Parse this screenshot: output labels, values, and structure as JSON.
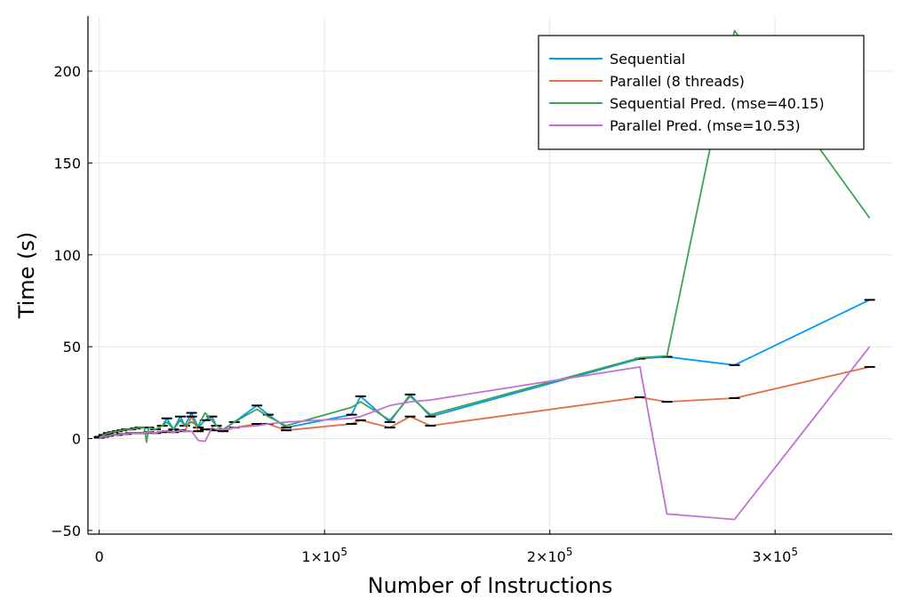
{
  "chart_data": {
    "type": "line",
    "xlabel": "Number of Instructions",
    "ylabel": "Time (s)",
    "xlim": [
      -5000,
      352000
    ],
    "ylim": [
      -52,
      230
    ],
    "x_ticks": [
      {
        "value": 0,
        "base": "0",
        "exp": ""
      },
      {
        "value": 100000,
        "base": "1×10",
        "exp": "5"
      },
      {
        "value": 200000,
        "base": "2×10",
        "exp": "5"
      },
      {
        "value": 300000,
        "base": "3×10",
        "exp": "5"
      }
    ],
    "y_ticks": [
      {
        "value": -50,
        "label": "−50"
      },
      {
        "value": 0,
        "label": "0"
      },
      {
        "value": 50,
        "label": "50"
      },
      {
        "value": 100,
        "label": "100"
      },
      {
        "value": 150,
        "label": "150"
      },
      {
        "value": 200,
        "label": "200"
      }
    ],
    "grid": true,
    "legend_position": "top-right",
    "series": [
      {
        "name": "Sequential",
        "color": "#009af9",
        "errorbars": true,
        "x": [
          0,
          2000,
          4000,
          6000,
          8000,
          10000,
          12000,
          14000,
          16000,
          18000,
          20000,
          22000,
          25000,
          28000,
          30000,
          33000,
          36000,
          38000,
          41000,
          44000,
          47000,
          50000,
          52000,
          55000,
          60000,
          70000,
          75000,
          83000,
          112000,
          116000,
          129000,
          138000,
          147000,
          240000,
          252000,
          282000,
          342000
        ],
        "y": [
          1,
          2,
          3,
          3.5,
          4,
          4.5,
          5,
          5,
          5.5,
          6,
          6,
          6,
          5,
          7,
          11,
          5,
          12,
          7,
          14,
          6,
          10,
          12,
          7,
          5,
          9,
          18,
          13,
          6,
          13,
          23,
          9,
          24,
          12,
          43.5,
          44.5,
          40,
          75.5
        ]
      },
      {
        "name": "Parallel (8 threads)",
        "color": "#e26f46",
        "errorbars": true,
        "x": [
          0,
          2000,
          4000,
          6000,
          8000,
          10000,
          12000,
          14000,
          16000,
          18000,
          20000,
          22000,
          25000,
          28000,
          30000,
          33000,
          36000,
          38000,
          41000,
          44000,
          47000,
          50000,
          52000,
          55000,
          60000,
          70000,
          75000,
          83000,
          112000,
          116000,
          129000,
          138000,
          147000,
          240000,
          252000,
          282000,
          342000
        ],
        "y": [
          0.5,
          1,
          1.5,
          2,
          2,
          2.5,
          2.5,
          3,
          3,
          3,
          3,
          3.5,
          3,
          3.5,
          4,
          3.5,
          4.5,
          4,
          12,
          4,
          5,
          5,
          4.5,
          4,
          6,
          8,
          8,
          4.5,
          8,
          10,
          6,
          12,
          7,
          22.5,
          20,
          22,
          39
        ]
      },
      {
        "name": "Sequential Pred. (mse=40.15)",
        "color": "#3da44d",
        "errorbars": false,
        "x": [
          0,
          2000,
          4000,
          6000,
          8000,
          10000,
          12000,
          14000,
          16000,
          18000,
          20000,
          21000,
          22000,
          25000,
          28000,
          30000,
          33000,
          36000,
          38000,
          41000,
          44000,
          47000,
          50000,
          52000,
          55000,
          60000,
          70000,
          75000,
          83000,
          112000,
          116000,
          129000,
          138000,
          147000,
          240000,
          252000,
          282000,
          342000
        ],
        "y": [
          0.5,
          2,
          3,
          3.5,
          4,
          4.5,
          5,
          5,
          5.5,
          6,
          6,
          -2,
          6,
          5,
          7,
          9,
          5,
          10,
          7,
          9,
          7,
          14,
          10,
          7,
          5,
          9,
          16,
          12,
          7,
          17,
          20,
          10,
          23,
          13,
          44,
          45,
          222,
          120
        ]
      },
      {
        "name": "Parallel Pred. (mse=10.53)",
        "color": "#c271d2",
        "errorbars": false,
        "x": [
          0,
          2000,
          4000,
          6000,
          8000,
          10000,
          12000,
          14000,
          16000,
          18000,
          20000,
          22000,
          25000,
          28000,
          30000,
          33000,
          36000,
          38000,
          41000,
          44000,
          47000,
          50000,
          52000,
          55000,
          60000,
          70000,
          75000,
          83000,
          112000,
          116000,
          129000,
          138000,
          147000,
          240000,
          252000,
          282000,
          342000
        ],
        "y": [
          0.5,
          1,
          1.5,
          2,
          2,
          2.5,
          2.5,
          3,
          3,
          3,
          3,
          3.5,
          3,
          4,
          4,
          3.5,
          4.5,
          4,
          4,
          -1,
          -1.5,
          6,
          5,
          5,
          6,
          7,
          8,
          9,
          11,
          12,
          18,
          20,
          21,
          39,
          -41,
          -44,
          50
        ]
      }
    ]
  }
}
